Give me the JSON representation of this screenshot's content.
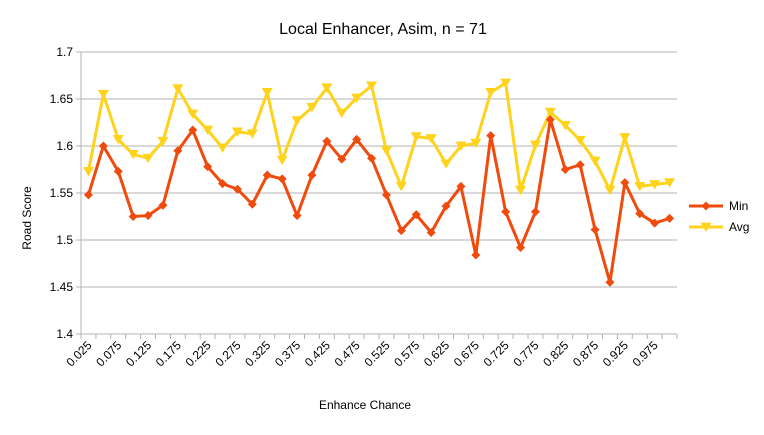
{
  "chart_data": {
    "type": "line",
    "title": "Local Enhancer, Asim, n = 71",
    "xlabel": "Enhance Chance",
    "ylabel": "Road Score",
    "ylim": [
      1.4,
      1.7
    ],
    "yticks": [
      "1.4",
      "1.45",
      "1.5",
      "1.55",
      "1.6",
      "1.65",
      "1.7"
    ],
    "x": [
      "0.025",
      "0.05",
      "0.075",
      "0.1",
      "0.125",
      "0.15",
      "0.175",
      "0.2",
      "0.225",
      "0.25",
      "0.275",
      "0.3",
      "0.325",
      "0.35",
      "0.375",
      "0.4",
      "0.425",
      "0.45",
      "0.475",
      "0.5",
      "0.525",
      "0.55",
      "0.575",
      "0.6",
      "0.625",
      "0.65",
      "0.675",
      "0.7",
      "0.725",
      "0.75",
      "0.775",
      "0.8",
      "0.825",
      "0.85",
      "0.875",
      "0.9",
      "0.925",
      "0.95",
      "0.975",
      "1"
    ],
    "xtick_labels": [
      "0.025",
      "",
      "0.075",
      "",
      "0.125",
      "",
      "0.175",
      "",
      "0.225",
      "",
      "0.275",
      "",
      "0.325",
      "",
      "0.375",
      "",
      "0.425",
      "",
      "0.475",
      "",
      "0.525",
      "",
      "0.575",
      "",
      "0.625",
      "",
      "0.675",
      "",
      "0.725",
      "",
      "0.775",
      "",
      "0.825",
      "",
      "0.875",
      "",
      "0.925",
      "",
      "0.975",
      ""
    ],
    "grid": "horizontal",
    "legend_position": "right",
    "series": [
      {
        "name": "Min",
        "color": "#f04a0c",
        "marker": "diamond",
        "values": [
          1.548,
          1.6,
          1.573,
          1.525,
          1.526,
          1.537,
          1.595,
          1.617,
          1.578,
          1.56,
          1.554,
          1.538,
          1.569,
          1.565,
          1.526,
          1.569,
          1.605,
          1.586,
          1.607,
          1.587,
          1.548,
          1.51,
          1.527,
          1.508,
          1.536,
          1.557,
          1.484,
          1.611,
          1.53,
          1.492,
          1.53,
          1.628,
          1.575,
          1.58,
          1.511,
          1.455,
          1.561,
          1.528,
          1.518,
          1.523
        ]
      },
      {
        "name": "Avg",
        "color": "#ffd21c",
        "marker": "triangle-down",
        "values": [
          1.573,
          1.655,
          1.607,
          1.591,
          1.587,
          1.605,
          1.661,
          1.634,
          1.617,
          1.598,
          1.615,
          1.613,
          1.657,
          1.585,
          1.627,
          1.641,
          1.662,
          1.635,
          1.651,
          1.664,
          1.595,
          1.557,
          1.61,
          1.608,
          1.581,
          1.6,
          1.603,
          1.657,
          1.667,
          1.553,
          1.601,
          1.636,
          1.622,
          1.606,
          1.584,
          1.553,
          1.609,
          1.557,
          1.559,
          1.561
        ]
      }
    ]
  }
}
